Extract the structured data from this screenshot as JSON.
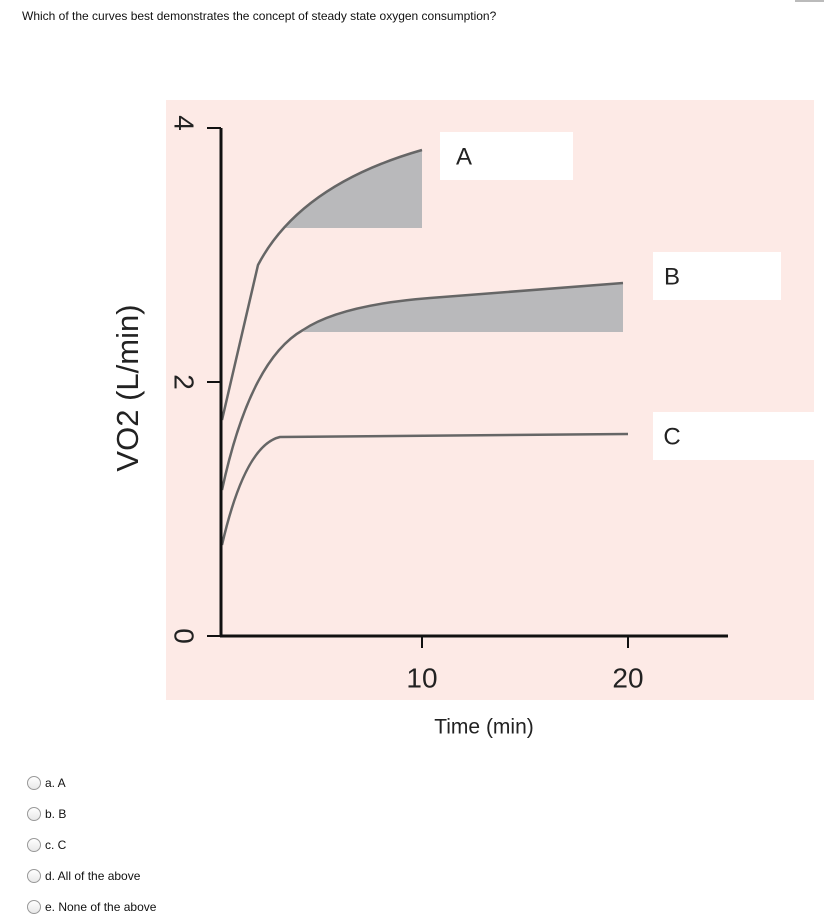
{
  "question": "Which of the curves best demonstrates the concept of steady state oxygen consumption?",
  "figure": {
    "y_axis_label": "VO2 (L/min)",
    "x_axis_label": "Time (min)",
    "y_ticks": [
      "4",
      "2",
      "0"
    ],
    "x_ticks": [
      "10",
      "20"
    ],
    "curve_labels": [
      "A",
      "B",
      "C"
    ]
  },
  "options": [
    "a. A",
    "b. B",
    "c. C",
    "d. All of the above",
    "e. None of the above"
  ]
}
